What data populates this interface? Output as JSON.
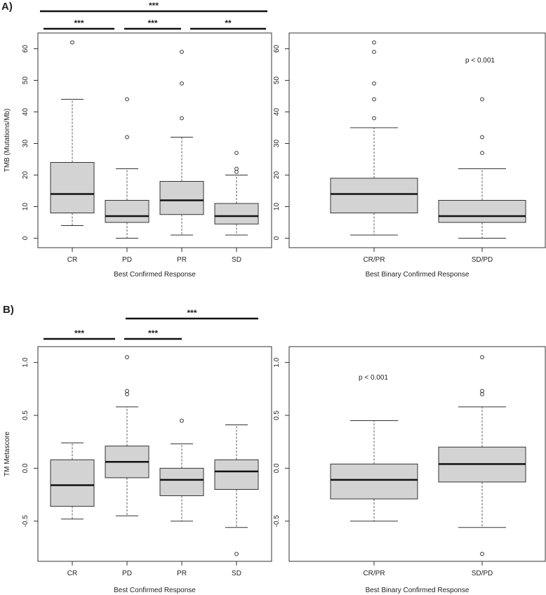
{
  "figure_labels": {
    "a": "A)",
    "b": "B)"
  },
  "chart_data": [
    {
      "id": "a-left",
      "type": "box",
      "title": "",
      "xlabel": "Best Confirmed Response",
      "ylabel": "TMB (Mutations/Mb)",
      "ylim": [
        -3,
        65
      ],
      "yticks": [
        0,
        10,
        20,
        30,
        40,
        50,
        60
      ],
      "ytick_labels": [
        "0",
        "10",
        "20",
        "30",
        "40",
        "50",
        "60"
      ],
      "categories": [
        "CR",
        "PD",
        "PR",
        "SD"
      ],
      "boxes": [
        {
          "q1": 8,
          "median": 14,
          "q3": 24,
          "whisker_low": 4,
          "whisker_high": 44,
          "outliers": [
            62
          ]
        },
        {
          "q1": 5,
          "median": 7,
          "q3": 12,
          "whisker_low": 0,
          "whisker_high": 22,
          "outliers": [
            32,
            44
          ]
        },
        {
          "q1": 7.5,
          "median": 12,
          "q3": 18,
          "whisker_low": 1,
          "whisker_high": 32,
          "outliers": [
            38,
            49,
            59
          ]
        },
        {
          "q1": 4.5,
          "median": 7,
          "q3": 11,
          "whisker_low": 1,
          "whisker_high": 20,
          "outliers": [
            21,
            22,
            27
          ]
        }
      ],
      "significance": [
        {
          "from": 0,
          "to": 3,
          "label": "***"
        },
        {
          "from": 0,
          "to": 1,
          "label": "***"
        },
        {
          "from": 1,
          "to": 2,
          "label": "***"
        },
        {
          "from": 2,
          "to": 3,
          "label": "**"
        }
      ],
      "annotation": ""
    },
    {
      "id": "a-right",
      "type": "box",
      "title": "",
      "xlabel": "Best Binary Confirmed Response",
      "ylabel": "",
      "ylim": [
        -3,
        65
      ],
      "yticks": [
        0,
        10,
        20,
        30,
        40,
        50,
        60
      ],
      "ytick_labels": [
        "0",
        "10",
        "20",
        "30",
        "40",
        "50",
        "60"
      ],
      "categories": [
        "CR/PR",
        "SD/PD"
      ],
      "boxes": [
        {
          "q1": 8,
          "median": 14,
          "q3": 19,
          "whisker_low": 1,
          "whisker_high": 35,
          "outliers": [
            38,
            44,
            49,
            59,
            62
          ]
        },
        {
          "q1": 5,
          "median": 7,
          "q3": 12,
          "whisker_low": 0,
          "whisker_high": 22,
          "outliers": [
            27,
            32,
            44
          ]
        }
      ],
      "significance": [],
      "annotation": "p < 0.001"
    },
    {
      "id": "b-left",
      "type": "box",
      "title": "",
      "xlabel": "Best Confirmed Response",
      "ylabel": "TM Metascore",
      "ylim": [
        -0.88,
        1.15
      ],
      "yticks": [
        -0.5,
        0.0,
        0.5,
        1.0
      ],
      "ytick_labels": [
        "-0.5",
        "0.0",
        "0.5",
        "1.0"
      ],
      "categories": [
        "CR",
        "PD",
        "PR",
        "SD"
      ],
      "boxes": [
        {
          "q1": -0.36,
          "median": -0.16,
          "q3": 0.08,
          "whisker_low": -0.48,
          "whisker_high": 0.24,
          "outliers": []
        },
        {
          "q1": -0.09,
          "median": 0.06,
          "q3": 0.21,
          "whisker_low": -0.45,
          "whisker_high": 0.58,
          "outliers": [
            0.7,
            0.73,
            1.05
          ]
        },
        {
          "q1": -0.26,
          "median": -0.11,
          "q3": 0.0,
          "whisker_low": -0.5,
          "whisker_high": 0.23,
          "outliers": [
            0.45
          ]
        },
        {
          "q1": -0.2,
          "median": -0.03,
          "q3": 0.08,
          "whisker_low": -0.56,
          "whisker_high": 0.41,
          "outliers": [
            -0.81
          ]
        }
      ],
      "significance": [
        {
          "from": 1,
          "to": 3,
          "label": "***"
        },
        {
          "from": 0,
          "to": 1,
          "label": "***"
        },
        {
          "from": 1,
          "to": 2,
          "label": "***"
        }
      ],
      "annotation": ""
    },
    {
      "id": "b-right",
      "type": "box",
      "title": "",
      "xlabel": "Best Binary Confirmed Response",
      "ylabel": "",
      "ylim": [
        -0.88,
        1.15
      ],
      "yticks": [
        -0.5,
        0.0,
        0.5,
        1.0
      ],
      "ytick_labels": [
        "-0.5",
        "0.0",
        "0.5",
        "1.0"
      ],
      "categories": [
        "CR/PR",
        "SD/PD"
      ],
      "boxes": [
        {
          "q1": -0.29,
          "median": -0.11,
          "q3": 0.04,
          "whisker_low": -0.5,
          "whisker_high": 0.45,
          "outliers": []
        },
        {
          "q1": -0.13,
          "median": 0.04,
          "q3": 0.2,
          "whisker_low": -0.56,
          "whisker_high": 0.58,
          "outliers": [
            0.7,
            0.73,
            1.05,
            -0.81
          ]
        }
      ],
      "significance": [],
      "annotation": "p < 0.001"
    }
  ]
}
